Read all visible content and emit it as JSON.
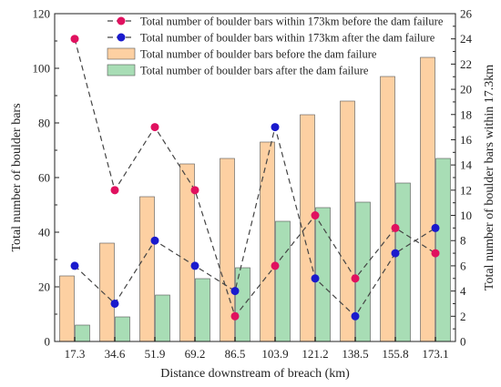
{
  "chart_data": {
    "type": "bar",
    "categories": [
      "17.3",
      "34.6",
      "51.9",
      "69.2",
      "86.5",
      "103.9",
      "121.2",
      "138.5",
      "155.8",
      "173.1"
    ],
    "xlabel": "Distance downstream of breach (km)",
    "ylabel_left": "Total number of boulder bars",
    "ylabel_right": "Total number of boulder bars within 17.3km",
    "ylim_left": [
      0,
      120
    ],
    "yticks_left": [
      0,
      20,
      40,
      60,
      80,
      100,
      120
    ],
    "ylim_right": [
      0,
      26
    ],
    "yticks_right": [
      0,
      2,
      4,
      6,
      8,
      10,
      12,
      14,
      16,
      18,
      20,
      22,
      24,
      26
    ],
    "grid": false,
    "legend_position": "top",
    "series": [
      {
        "name": "Total number of boulder bars within 173km before the dam failure",
        "type": "line",
        "axis": "right",
        "color": "#e0115f",
        "values": [
          24,
          12,
          17,
          12,
          2,
          6,
          10,
          5,
          9,
          7
        ]
      },
      {
        "name": "Total number of boulder bars within 173km after the dam failure",
        "type": "line",
        "axis": "right",
        "color": "#1a1acd",
        "values": [
          6,
          3,
          8,
          6,
          4,
          17,
          5,
          2,
          7,
          9
        ]
      },
      {
        "name": "Total number of boulder bars before the dam failure",
        "type": "bar",
        "axis": "left",
        "color": "#fdd0a2",
        "values": [
          24,
          36,
          53,
          65,
          67,
          73,
          83,
          88,
          97,
          104
        ]
      },
      {
        "name": "Total number of boulder bars after the dam failure",
        "type": "bar",
        "axis": "left",
        "color": "#a8ddb5",
        "values": [
          6,
          9,
          17,
          23,
          27,
          44,
          49,
          51,
          58,
          67
        ]
      }
    ]
  }
}
